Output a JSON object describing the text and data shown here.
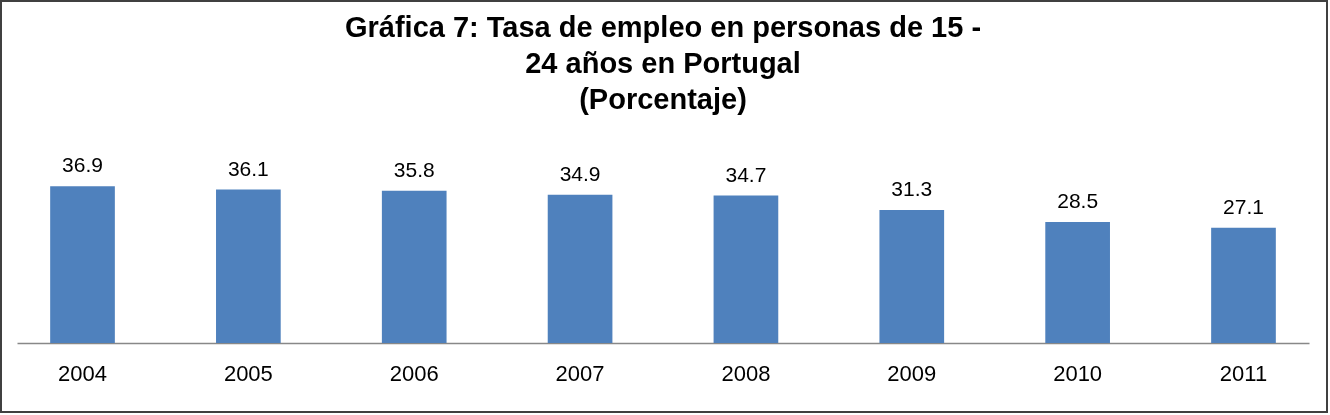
{
  "chart_data": {
    "type": "bar",
    "title": "Gráfica 7: Tasa de empleo en personas de 15 -\n24 años en Portugal\n(Porcentaje)",
    "categories": [
      "2004",
      "2005",
      "2006",
      "2007",
      "2008",
      "2009",
      "2010",
      "2011"
    ],
    "values": [
      36.9,
      36.1,
      35.8,
      34.9,
      34.7,
      31.3,
      28.5,
      27.1
    ],
    "color": "#4f81bd",
    "data_labels": true
  }
}
